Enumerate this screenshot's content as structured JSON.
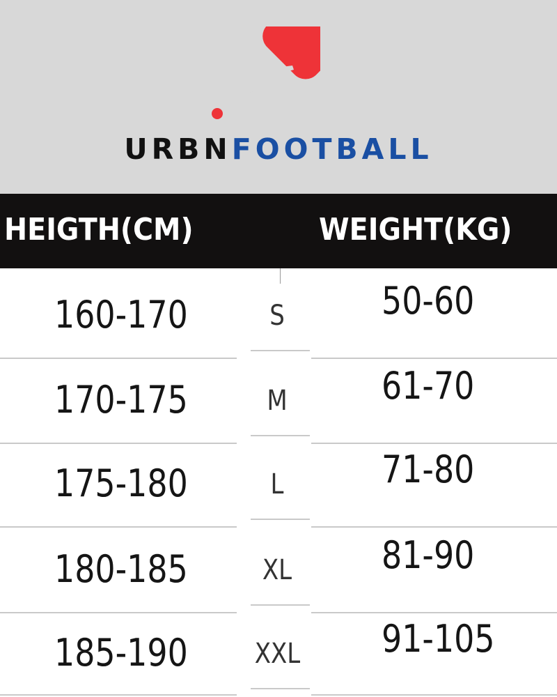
{
  "brand": {
    "part1": "URBN",
    "part2": "FOOTBALL",
    "logo_color": "#ee3338",
    "text_color_1": "#111111",
    "text_color_2": "#1a4fa3"
  },
  "table": {
    "headers": {
      "height": "HEIGTH(CM)",
      "weight": "WEIGHT(KG)"
    },
    "rows": [
      {
        "height": "160-170",
        "size": "S",
        "weight": "50-60"
      },
      {
        "height": "170-175",
        "size": "M",
        "weight": "61-70"
      },
      {
        "height": "175-180",
        "size": "L",
        "weight": "71-80"
      },
      {
        "height": "180-185",
        "size": "XL",
        "weight": "81-90"
      },
      {
        "height": "185-190",
        "size": "XXL",
        "weight": "91-105"
      }
    ]
  }
}
